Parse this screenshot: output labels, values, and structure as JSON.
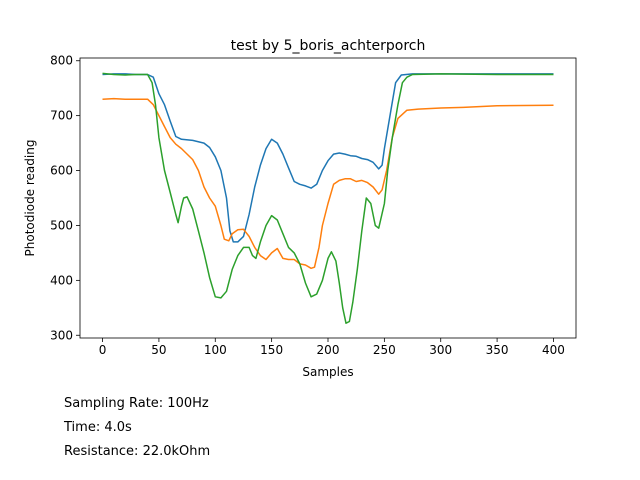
{
  "chart_data": {
    "type": "line",
    "title": "test by 5_boris_achterporch",
    "xlabel": "Samples",
    "ylabel": "Photodiode reading",
    "xlim": [
      -20,
      420
    ],
    "ylim": [
      295,
      805
    ],
    "x_ticks": [
      0,
      50,
      100,
      150,
      200,
      250,
      300,
      350,
      400
    ],
    "y_ticks": [
      300,
      400,
      500,
      600,
      700,
      800
    ],
    "grid": false,
    "series": [
      {
        "color": "#1f77b4",
        "points": [
          [
            0,
            775
          ],
          [
            10,
            776
          ],
          [
            20,
            776
          ],
          [
            30,
            775
          ],
          [
            40,
            775
          ],
          [
            45,
            770
          ],
          [
            50,
            740
          ],
          [
            55,
            720
          ],
          [
            60,
            690
          ],
          [
            65,
            662
          ],
          [
            70,
            657
          ],
          [
            80,
            655
          ],
          [
            90,
            650
          ],
          [
            95,
            642
          ],
          [
            100,
            625
          ],
          [
            105,
            600
          ],
          [
            110,
            550
          ],
          [
            113,
            490
          ],
          [
            116,
            470
          ],
          [
            120,
            470
          ],
          [
            125,
            480
          ],
          [
            130,
            520
          ],
          [
            135,
            570
          ],
          [
            140,
            610
          ],
          [
            145,
            640
          ],
          [
            150,
            657
          ],
          [
            155,
            650
          ],
          [
            160,
            630
          ],
          [
            165,
            605
          ],
          [
            170,
            580
          ],
          [
            175,
            575
          ],
          [
            180,
            572
          ],
          [
            185,
            568
          ],
          [
            190,
            575
          ],
          [
            195,
            600
          ],
          [
            200,
            618
          ],
          [
            205,
            630
          ],
          [
            210,
            632
          ],
          [
            215,
            630
          ],
          [
            220,
            627
          ],
          [
            225,
            626
          ],
          [
            230,
            622
          ],
          [
            235,
            620
          ],
          [
            240,
            615
          ],
          [
            245,
            603
          ],
          [
            248,
            610
          ],
          [
            250,
            640
          ],
          [
            255,
            700
          ],
          [
            260,
            760
          ],
          [
            265,
            774
          ],
          [
            275,
            776
          ],
          [
            300,
            776
          ],
          [
            350,
            776
          ],
          [
            400,
            776
          ]
        ]
      },
      {
        "color": "#ff7f0e",
        "points": [
          [
            0,
            730
          ],
          [
            10,
            731
          ],
          [
            20,
            730
          ],
          [
            30,
            730
          ],
          [
            40,
            730
          ],
          [
            45,
            720
          ],
          [
            50,
            700
          ],
          [
            55,
            680
          ],
          [
            60,
            660
          ],
          [
            65,
            648
          ],
          [
            70,
            640
          ],
          [
            75,
            630
          ],
          [
            80,
            620
          ],
          [
            85,
            600
          ],
          [
            90,
            570
          ],
          [
            95,
            550
          ],
          [
            100,
            535
          ],
          [
            105,
            500
          ],
          [
            108,
            475
          ],
          [
            112,
            472
          ],
          [
            115,
            485
          ],
          [
            120,
            492
          ],
          [
            125,
            493
          ],
          [
            130,
            480
          ],
          [
            135,
            460
          ],
          [
            140,
            445
          ],
          [
            145,
            438
          ],
          [
            150,
            450
          ],
          [
            155,
            458
          ],
          [
            160,
            440
          ],
          [
            165,
            438
          ],
          [
            170,
            438
          ],
          [
            175,
            430
          ],
          [
            180,
            428
          ],
          [
            185,
            422
          ],
          [
            188,
            424
          ],
          [
            192,
            460
          ],
          [
            195,
            500
          ],
          [
            200,
            540
          ],
          [
            205,
            575
          ],
          [
            210,
            582
          ],
          [
            215,
            585
          ],
          [
            220,
            585
          ],
          [
            225,
            580
          ],
          [
            230,
            582
          ],
          [
            235,
            578
          ],
          [
            240,
            570
          ],
          [
            245,
            557
          ],
          [
            248,
            565
          ],
          [
            252,
            600
          ],
          [
            257,
            660
          ],
          [
            262,
            695
          ],
          [
            270,
            710
          ],
          [
            280,
            712
          ],
          [
            300,
            714
          ],
          [
            320,
            715
          ],
          [
            350,
            718
          ],
          [
            400,
            719
          ]
        ]
      },
      {
        "color": "#2ca02c",
        "points": [
          [
            0,
            777
          ],
          [
            10,
            775
          ],
          [
            20,
            774
          ],
          [
            30,
            775
          ],
          [
            40,
            775
          ],
          [
            44,
            760
          ],
          [
            47,
            720
          ],
          [
            50,
            660
          ],
          [
            55,
            600
          ],
          [
            60,
            560
          ],
          [
            65,
            520
          ],
          [
            67,
            505
          ],
          [
            70,
            535
          ],
          [
            72,
            550
          ],
          [
            75,
            552
          ],
          [
            80,
            530
          ],
          [
            85,
            490
          ],
          [
            90,
            450
          ],
          [
            95,
            405
          ],
          [
            100,
            370
          ],
          [
            105,
            368
          ],
          [
            110,
            380
          ],
          [
            115,
            420
          ],
          [
            120,
            445
          ],
          [
            125,
            460
          ],
          [
            130,
            460
          ],
          [
            133,
            445
          ],
          [
            136,
            440
          ],
          [
            140,
            470
          ],
          [
            145,
            500
          ],
          [
            150,
            518
          ],
          [
            155,
            510
          ],
          [
            160,
            485
          ],
          [
            165,
            460
          ],
          [
            170,
            450
          ],
          [
            175,
            430
          ],
          [
            180,
            395
          ],
          [
            185,
            370
          ],
          [
            190,
            375
          ],
          [
            195,
            400
          ],
          [
            200,
            440
          ],
          [
            203,
            452
          ],
          [
            207,
            435
          ],
          [
            210,
            395
          ],
          [
            213,
            350
          ],
          [
            216,
            322
          ],
          [
            219,
            325
          ],
          [
            222,
            360
          ],
          [
            226,
            420
          ],
          [
            230,
            490
          ],
          [
            234,
            550
          ],
          [
            238,
            540
          ],
          [
            242,
            500
          ],
          [
            245,
            495
          ],
          [
            250,
            540
          ],
          [
            253,
            600
          ],
          [
            257,
            660
          ],
          [
            262,
            720
          ],
          [
            266,
            760
          ],
          [
            270,
            770
          ],
          [
            275,
            775
          ],
          [
            300,
            776
          ],
          [
            350,
            775
          ],
          [
            400,
            775
          ]
        ]
      }
    ]
  },
  "info": {
    "sampling_rate": "Sampling Rate: 100Hz",
    "time": "Time: 4.0s",
    "resistance": "Resistance: 22.0kOhm"
  }
}
